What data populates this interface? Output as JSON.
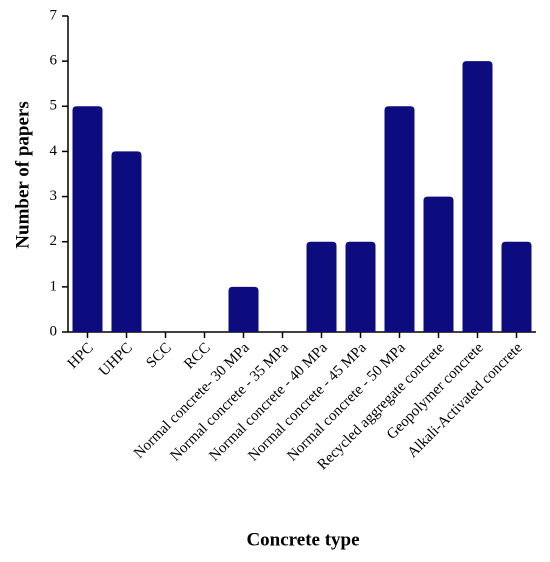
{
  "chart_data": {
    "type": "bar",
    "x_label": "Concrete type",
    "y_label": "Number of papers",
    "categories": [
      "HPC",
      "UHPC",
      "SCC",
      "RCC",
      "Normal concrete- 30 MPa",
      "Normal concrete - 35 MPa",
      "Normal concrete - 40 MPa",
      "Normal concrete - 45 MPa",
      "Normal concrete - 50 MPa",
      "Recycled aggregate concrete",
      "Geopolymer concrete",
      "Alkali-Activated concrete"
    ],
    "values": [
      5,
      4,
      0,
      0,
      1,
      0,
      2,
      2,
      5,
      3,
      6,
      2
    ],
    "color": "#0c0c7e",
    "ylim": [
      0,
      7
    ],
    "yticks": [
      0,
      1,
      2,
      3,
      4,
      5,
      6,
      7
    ]
  }
}
